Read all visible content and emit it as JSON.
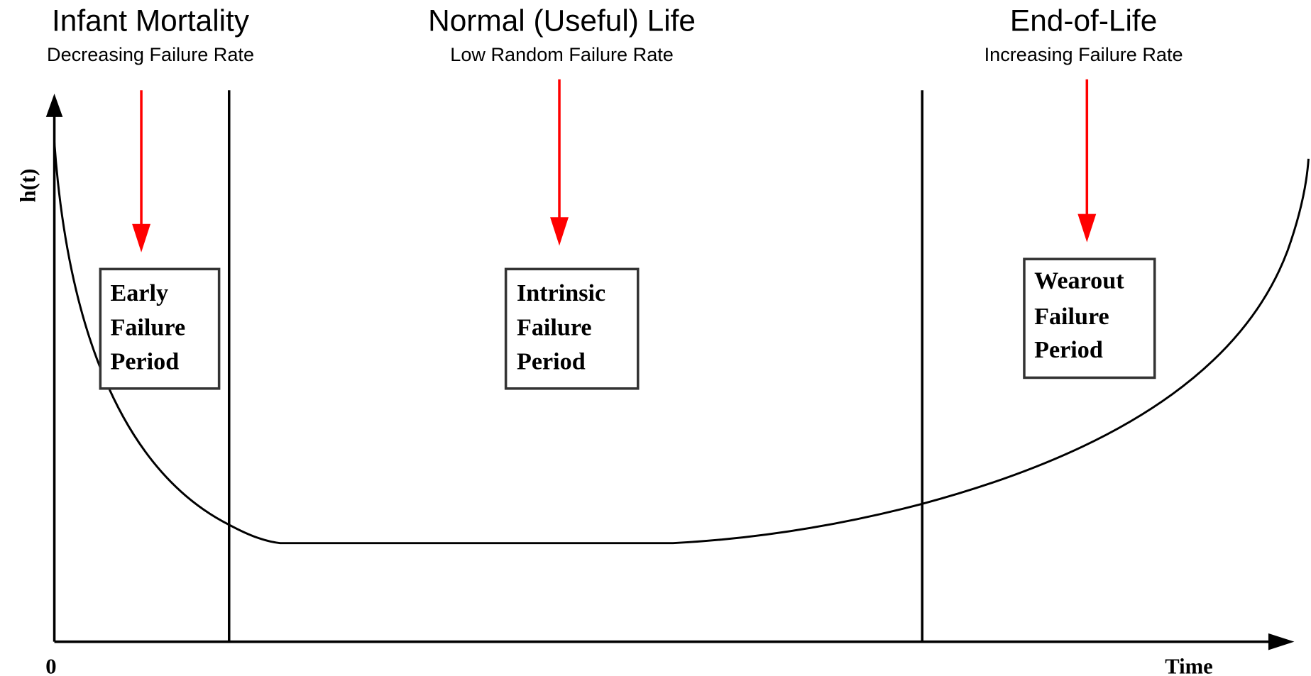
{
  "axis": {
    "y_label": "h(t)",
    "origin": "0",
    "x_label": "Time"
  },
  "phases": [
    {
      "title": "Infant Mortality",
      "subtitle": "Decreasing Failure Rate",
      "box": [
        "Early",
        "Failure",
        "Period"
      ]
    },
    {
      "title": "Normal (Useful) Life",
      "subtitle": "Low Random Failure Rate",
      "box": [
        "Intrinsic",
        "Failure",
        "Period"
      ]
    },
    {
      "title": "End-of-Life",
      "subtitle": "Increasing Failure Rate",
      "box": [
        "Wearout",
        "Failure",
        "Period"
      ]
    }
  ]
}
